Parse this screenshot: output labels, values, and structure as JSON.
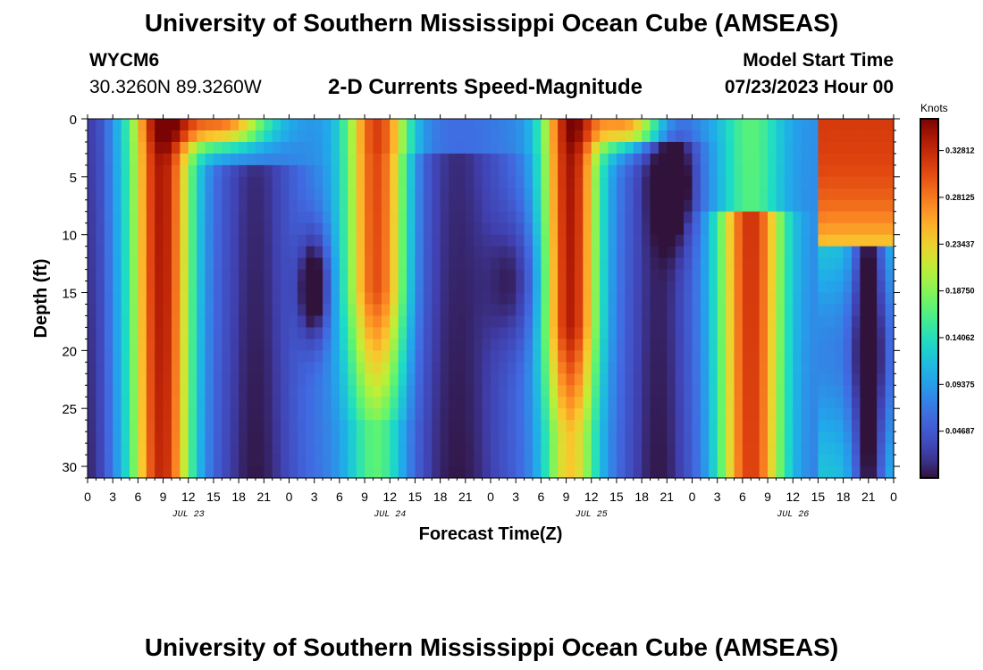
{
  "page": {
    "title": "University of Southern Mississippi Ocean Cube (AMSEAS)",
    "footer_title": "University of Southern Mississippi Ocean Cube (AMSEAS)",
    "station_id": "WYCM6",
    "coordinates": "30.3260N  89.3260W",
    "model_start_label": "Model Start Time",
    "model_start_value": "07/23/2023 Hour 00"
  },
  "chart_data": {
    "type": "heatmap",
    "title": "2-D Currents Speed-Magnitude",
    "xlabel": "Forecast Time(Z)",
    "ylabel": "Depth (ft)",
    "x_range_hours": [
      0,
      96
    ],
    "y_range_ft": [
      0,
      31
    ],
    "x_tick_labels": [
      "0",
      "3",
      "6",
      "9",
      "12",
      "15",
      "18",
      "21",
      "0",
      "3",
      "6",
      "9",
      "12",
      "15",
      "18",
      "21",
      "0",
      "3",
      "6",
      "9",
      "12",
      "15",
      "18",
      "21",
      "0",
      "3",
      "6",
      "9",
      "12",
      "15",
      "18",
      "21",
      "0"
    ],
    "y_ticks": [
      0,
      5,
      10,
      15,
      20,
      25,
      30
    ],
    "y_tick_labels": [
      "0",
      "5",
      "10",
      "15",
      "20",
      "25",
      "30"
    ],
    "date_labels": [
      {
        "label": "JUL 23",
        "hour": 12
      },
      {
        "label": "JUL 24",
        "hour": 36
      },
      {
        "label": "JUL 25",
        "hour": 60
      },
      {
        "label": "JUL 26",
        "hour": 84
      }
    ],
    "colorbar": {
      "units": "Knots",
      "min": 0.0,
      "max": 0.36,
      "tick_values": [
        0.32812,
        0.28125,
        0.23437,
        0.1875,
        0.14062,
        0.09375,
        0.04687
      ],
      "tick_labels": [
        "0.32812",
        "0.28125",
        "0.23437",
        "0.18750",
        "0.14062",
        "0.09375",
        "0.04687"
      ]
    }
  }
}
